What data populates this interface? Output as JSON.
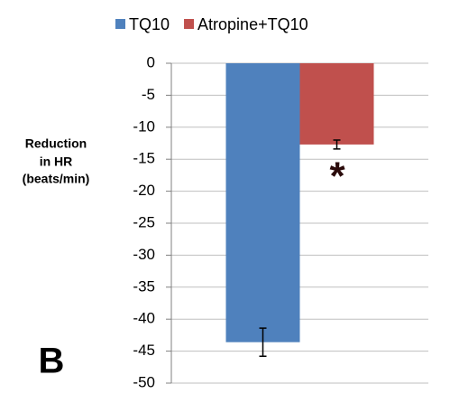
{
  "chart_data": {
    "type": "bar",
    "categories": [
      null
    ],
    "series": [
      {
        "name": "TQ10",
        "color": "#4f81bd",
        "values": [
          -43.6
        ],
        "errors": [
          2.2
        ]
      },
      {
        "name": "Atropine+TQ10",
        "color": "#c0504d",
        "values": [
          -12.7
        ],
        "errors": [
          0.7
        ]
      }
    ],
    "y_label": [
      "Reduction",
      "in HR",
      "(beats/min)"
    ],
    "ylim": [
      -50,
      0
    ],
    "yticks": [
      0,
      -5,
      -10,
      -15,
      -20,
      -25,
      -30,
      -35,
      -40,
      -45,
      -50
    ],
    "grid": true,
    "legend": "top",
    "annotations": [
      "*",
      "B"
    ]
  }
}
